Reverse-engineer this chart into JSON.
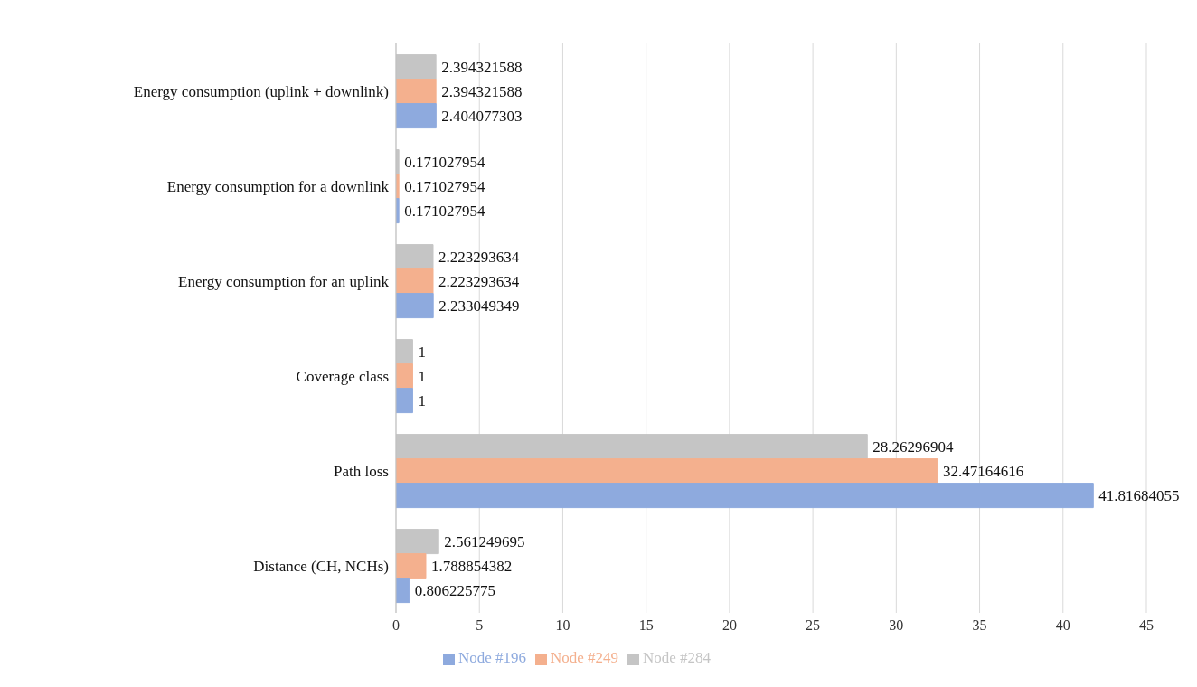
{
  "chart_data": {
    "type": "bar",
    "orientation": "horizontal",
    "categories": [
      "Energy consumption (uplink + downlink)",
      "Energy consumption for a downlink",
      "Energy consumption for an uplink",
      "Coverage class",
      "Path loss",
      "Distance (CH, NCHs)"
    ],
    "series": [
      {
        "name": "Node #284",
        "color": "#c5c5c5",
        "values": [
          2.394321588,
          0.171027954,
          2.223293634,
          1,
          28.26296904,
          2.561249695
        ]
      },
      {
        "name": "Node #249",
        "color": "#f4b08e",
        "values": [
          2.394321588,
          0.171027954,
          2.223293634,
          1,
          32.47164616,
          1.788854382
        ]
      },
      {
        "name": "Node #196",
        "color": "#8eaade",
        "values": [
          2.404077303,
          0.171027954,
          2.233049349,
          1,
          41.81684055,
          0.806225775
        ]
      }
    ],
    "xlim": [
      0,
      45
    ],
    "xticks": [
      0,
      5,
      10,
      15,
      20,
      25,
      30,
      35,
      40,
      45
    ],
    "grid": "x",
    "legend": "bottom",
    "data_labels": true
  }
}
